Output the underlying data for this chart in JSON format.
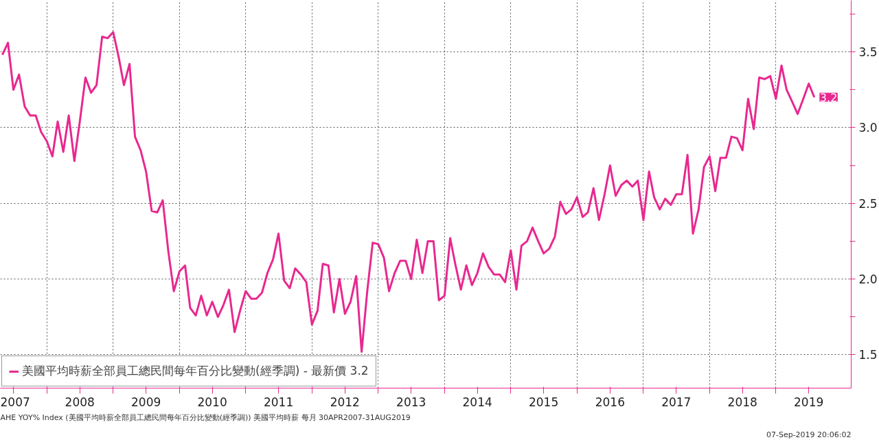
{
  "chart_data": {
    "type": "line",
    "x": [
      "2007-05",
      "2007-06",
      "2007-07",
      "2007-08",
      "2007-09",
      "2007-10",
      "2007-11",
      "2007-12",
      "2008-01",
      "2008-02",
      "2008-03",
      "2008-04",
      "2008-05",
      "2008-06",
      "2008-07",
      "2008-08",
      "2008-09",
      "2008-10",
      "2008-11",
      "2008-12",
      "2009-01",
      "2009-02",
      "2009-03",
      "2009-04",
      "2009-05",
      "2009-06",
      "2009-07",
      "2009-08",
      "2009-09",
      "2009-10",
      "2009-11",
      "2009-12",
      "2010-01",
      "2010-02",
      "2010-03",
      "2010-04",
      "2010-05",
      "2010-06",
      "2010-07",
      "2010-08",
      "2010-09",
      "2010-10",
      "2010-11",
      "2010-12",
      "2011-01",
      "2011-02",
      "2011-03",
      "2011-04",
      "2011-05",
      "2011-06",
      "2011-07",
      "2011-08",
      "2011-09",
      "2011-10",
      "2011-11",
      "2011-12",
      "2012-01",
      "2012-02",
      "2012-03",
      "2012-04",
      "2012-05",
      "2012-06",
      "2012-07",
      "2012-08",
      "2012-09",
      "2012-10",
      "2012-11",
      "2012-12",
      "2013-01",
      "2013-02",
      "2013-03",
      "2013-04",
      "2013-05",
      "2013-06",
      "2013-07",
      "2013-08",
      "2013-09",
      "2013-10",
      "2013-11",
      "2013-12",
      "2014-01",
      "2014-02",
      "2014-03",
      "2014-04",
      "2014-05",
      "2014-06",
      "2014-07",
      "2014-08",
      "2014-09",
      "2014-10",
      "2014-11",
      "2014-12",
      "2015-01",
      "2015-02",
      "2015-03",
      "2015-04",
      "2015-05",
      "2015-06",
      "2015-07",
      "2015-08",
      "2015-09",
      "2015-10",
      "2015-11",
      "2015-12",
      "2016-01",
      "2016-02",
      "2016-03",
      "2016-04",
      "2016-05",
      "2016-06",
      "2016-07",
      "2016-08",
      "2016-09",
      "2016-10",
      "2016-11",
      "2016-12",
      "2017-01",
      "2017-02",
      "2017-03",
      "2017-04",
      "2017-05",
      "2017-06",
      "2017-07",
      "2017-08",
      "2017-09",
      "2017-10",
      "2017-11",
      "2017-12",
      "2018-01",
      "2018-02",
      "2018-03",
      "2018-04",
      "2018-05",
      "2018-06",
      "2018-07",
      "2018-08",
      "2018-09",
      "2018-10",
      "2018-11",
      "2018-12",
      "2019-01",
      "2019-02",
      "2019-03",
      "2019-04",
      "2019-05",
      "2019-06",
      "2019-07",
      "2019-08"
    ],
    "series": [
      {
        "name": "美國平均時薪全部員工總民間每年百分比變動(經季調) - 最新價 3.2",
        "color": "#e8288f",
        "values": [
          3.48,
          3.56,
          3.25,
          3.35,
          3.14,
          3.08,
          3.08,
          2.97,
          2.91,
          2.81,
          3.04,
          2.84,
          3.08,
          2.78,
          3.04,
          3.33,
          3.23,
          3.28,
          3.6,
          3.59,
          3.63,
          3.46,
          3.28,
          3.42,
          2.94,
          2.85,
          2.71,
          2.45,
          2.44,
          2.52,
          2.18,
          1.92,
          2.05,
          2.09,
          1.81,
          1.76,
          1.89,
          1.76,
          1.85,
          1.75,
          1.83,
          1.93,
          1.65,
          1.79,
          1.92,
          1.87,
          1.87,
          1.91,
          2.04,
          2.13,
          2.3,
          1.99,
          1.94,
          2.07,
          2.03,
          1.98,
          1.7,
          1.79,
          2.1,
          2.09,
          1.78,
          2.0,
          1.77,
          1.85,
          2.02,
          1.52,
          1.92,
          2.24,
          2.23,
          2.14,
          1.92,
          2.04,
          2.12,
          2.12,
          2.0,
          2.26,
          2.04,
          2.25,
          2.25,
          1.86,
          1.89,
          2.27,
          2.1,
          1.93,
          2.09,
          1.96,
          2.04,
          2.17,
          2.08,
          2.03,
          2.03,
          1.98,
          2.19,
          1.93,
          2.22,
          2.25,
          2.34,
          2.25,
          2.17,
          2.2,
          2.28,
          2.51,
          2.43,
          2.46,
          2.54,
          2.41,
          2.44,
          2.6,
          2.39,
          2.56,
          2.75,
          2.55,
          2.62,
          2.65,
          2.61,
          2.65,
          2.39,
          2.71,
          2.54,
          2.46,
          2.53,
          2.49,
          2.56,
          2.56,
          2.82,
          2.3,
          2.46,
          2.74,
          2.81,
          2.58,
          2.8,
          2.8,
          2.94,
          2.93,
          2.85,
          3.19,
          2.99,
          3.33,
          3.32,
          3.34,
          3.19,
          3.41,
          3.25,
          3.17,
          3.09,
          3.19,
          3.29,
          3.2
        ]
      }
    ],
    "xlim": [
      "2007-04-20",
      "2020-02-20"
    ],
    "xticks": [
      {
        "value": "2007-07-01",
        "label": "2007"
      },
      {
        "value": "2008-01-01",
        "label": null
      },
      {
        "value": "2008-07-01",
        "label": "2008"
      },
      {
        "value": "2009-01-01",
        "label": null
      },
      {
        "value": "2009-07-01",
        "label": "2009"
      },
      {
        "value": "2010-01-01",
        "label": null
      },
      {
        "value": "2010-07-01",
        "label": "2010"
      },
      {
        "value": "2011-01-01",
        "label": null
      },
      {
        "value": "2011-07-01",
        "label": "2011"
      },
      {
        "value": "2012-01-01",
        "label": null
      },
      {
        "value": "2012-07-01",
        "label": "2012"
      },
      {
        "value": "2013-01-01",
        "label": null
      },
      {
        "value": "2013-07-01",
        "label": "2013"
      },
      {
        "value": "2014-01-01",
        "label": null
      },
      {
        "value": "2014-07-01",
        "label": "2014"
      },
      {
        "value": "2015-01-01",
        "label": null
      },
      {
        "value": "2015-07-01",
        "label": "2015"
      },
      {
        "value": "2016-01-01",
        "label": null
      },
      {
        "value": "2016-07-01",
        "label": "2016"
      },
      {
        "value": "2017-01-01",
        "label": null
      },
      {
        "value": "2017-07-01",
        "label": "2017"
      },
      {
        "value": "2018-01-01",
        "label": null
      },
      {
        "value": "2018-07-01",
        "label": "2018"
      },
      {
        "value": "2019-01-01",
        "label": null
      },
      {
        "value": "2019-07-01",
        "label": "2019"
      }
    ],
    "ylim": [
      1.28,
      3.84
    ],
    "yticks": [
      1.5,
      {
        "value": 1.75,
        "label": null
      },
      {
        "value": 2,
        "label": "2.0"
      },
      {
        "value": 2.25,
        "label": null
      },
      2.5,
      {
        "value": 2.75,
        "label": null
      },
      {
        "value": 3,
        "label": "3.0"
      },
      {
        "value": 3.25,
        "label": null
      },
      3.5,
      {
        "value": 3.75,
        "label": null
      }
    ],
    "grid": true,
    "legend": "bottom left",
    "line_style": "solid",
    "annotations": [
      {
        "text": "3.2",
        "x": "2019-08",
        "y": 3.2
      },
      "AHE YOY% Index (美國平均時薪全部員工總民間每年百分比變動(經季調)) 美國平均時薪  每月 30APR2007-31AUG2019",
      "07-Sep-2019 20:06:02"
    ]
  }
}
